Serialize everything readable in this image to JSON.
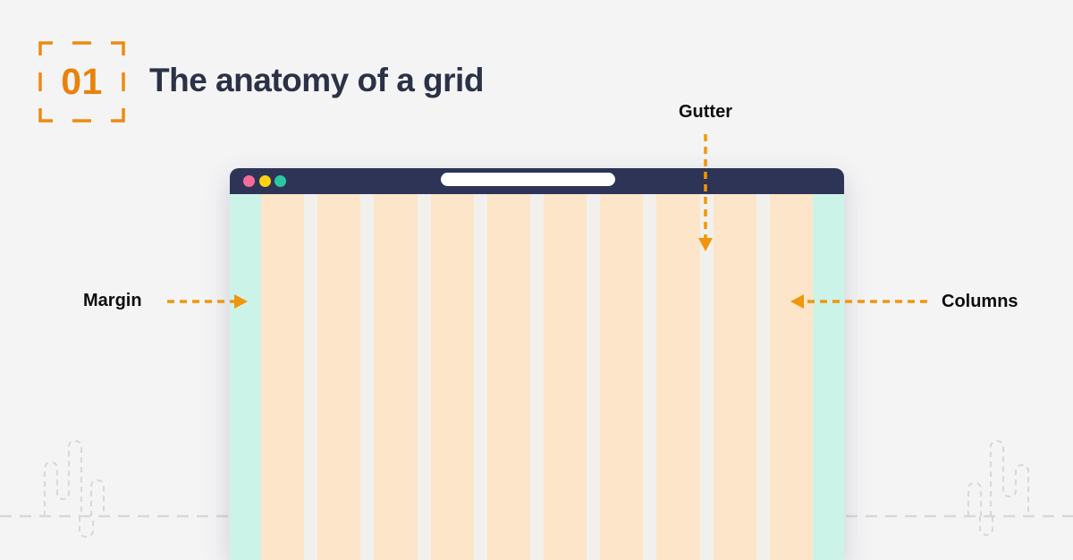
{
  "page": {
    "background": "#F4F4F5"
  },
  "header": {
    "number": "01",
    "title": "The anatomy of a grid",
    "accent_color": "#ED8A0E",
    "number_color": "#E8820B",
    "title_color": "#2B3147"
  },
  "labels": {
    "gutter": "Gutter",
    "margin": "Margin",
    "columns": "Columns"
  },
  "annotation": {
    "arrow_color": "#F0960D",
    "label_color": "#0D0D0D"
  },
  "browser": {
    "titlebar_color": "#2E3456",
    "traffic_lights": [
      {
        "name": "close",
        "color": "#F76B9B"
      },
      {
        "name": "minimize",
        "color": "#FFD30E"
      },
      {
        "name": "expand",
        "color": "#2BC9A2"
      }
    ],
    "addressbar_color": "#FFFFFF",
    "grid": {
      "column_count": 10,
      "margin_color": "#CCF3E8",
      "column_color": "#FDE5C9",
      "gutter_color": "#F2F0ED"
    }
  },
  "decor": {
    "line_color": "#D6D8D9"
  }
}
